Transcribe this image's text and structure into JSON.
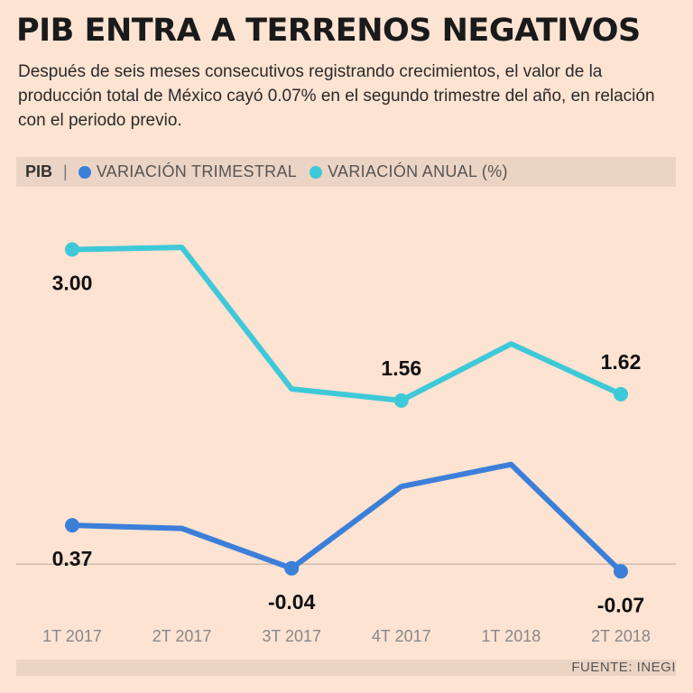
{
  "header": {
    "title": "PIB ENTRA A TERRENOS NEGATIVOS",
    "subtitle": "Después de seis meses consecutivos registrando crecimientos, el valor de la producción total de México cayó 0.07% en el segundo trimestre del año, en relación con el periodo previo."
  },
  "legend": {
    "prefix": "PIB",
    "separator": "|",
    "items": [
      {
        "label": "VARIACIÓN TRIMESTRAL",
        "color": "#3b7fd9"
      },
      {
        "label": "VARIACIÓN ANUAL (%)",
        "color": "#3ec9d8"
      }
    ]
  },
  "source": "FUENTE: INEGI",
  "chart_data": {
    "type": "line",
    "categories": [
      "1T 2017",
      "2T 2017",
      "3T 2017",
      "4T 2017",
      "1T 2018",
      "2T 2018"
    ],
    "series": [
      {
        "name": "VARIACIÓN ANUAL (%)",
        "color": "#3ec9d8",
        "values": [
          3.0,
          3.02,
          1.67,
          1.56,
          2.1,
          1.62
        ],
        "labels": [
          {
            "index": 0,
            "text": "3.00",
            "pos": "below"
          },
          {
            "index": 3,
            "text": "1.56",
            "pos": "above"
          },
          {
            "index": 5,
            "text": "1.62",
            "pos": "above"
          }
        ],
        "markers": [
          0,
          3,
          5
        ]
      },
      {
        "name": "VARIACIÓN TRIMESTRAL",
        "color": "#3b7fd9",
        "values": [
          0.37,
          0.34,
          -0.04,
          0.74,
          0.95,
          -0.07
        ],
        "labels": [
          {
            "index": 0,
            "text": "0.37",
            "pos": "below"
          },
          {
            "index": 2,
            "text": "-0.04",
            "pos": "below"
          },
          {
            "index": 5,
            "text": "-0.07",
            "pos": "below"
          }
        ],
        "markers": [
          0,
          2,
          5
        ]
      }
    ],
    "baseline": 0,
    "ylim": [
      -0.3,
      3.4
    ]
  }
}
